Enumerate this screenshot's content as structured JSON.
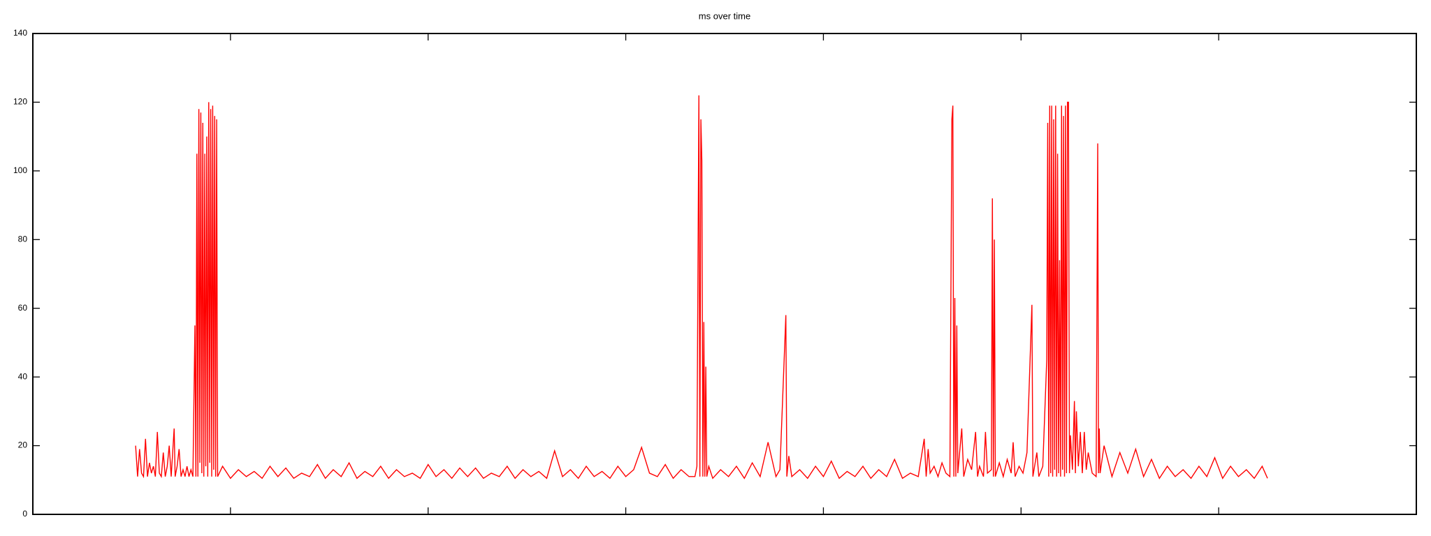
{
  "chart_data": {
    "type": "line",
    "title": "ms over time",
    "x": [
      52,
      53,
      54,
      55,
      56,
      57,
      58,
      59,
      60,
      61,
      62,
      63,
      64,
      65,
      66,
      67,
      68,
      69,
      70,
      71.5,
      72,
      73,
      74,
      75,
      76,
      77,
      78,
      79,
      80,
      81,
      82,
      82.5,
      83,
      83.5,
      84,
      84.5,
      85,
      85.5,
      86,
      86.5,
      87,
      87.5,
      88,
      88.5,
      89,
      89.5,
      90,
      90.5,
      91,
      91.5,
      92,
      92.5,
      93,
      93.5,
      96,
      100,
      104,
      108,
      112,
      116,
      120,
      124,
      128,
      132,
      136,
      140,
      144,
      148,
      152,
      156,
      160,
      164,
      168,
      172,
      176,
      180,
      184,
      188,
      192,
      196,
      200,
      204,
      208,
      212,
      216,
      220,
      224,
      228,
      232,
      236,
      240,
      244,
      248,
      252,
      256,
      260,
      264,
      268,
      272,
      276,
      280,
      284,
      288,
      292,
      296,
      300,
      304,
      308,
      312,
      316,
      320,
      324,
      328,
      332,
      335,
      336,
      337,
      337.5,
      338,
      338.5,
      339,
      339.5,
      340,
      340.5,
      341,
      342,
      344,
      348,
      352,
      356,
      360,
      364,
      368,
      372,
      376,
      378,
      381,
      381.5,
      382.5,
      384,
      388,
      392,
      396,
      400,
      404,
      408,
      412,
      416,
      420,
      424,
      428,
      432,
      436,
      440,
      444,
      448,
      451,
      452,
      453,
      454,
      456,
      458,
      460,
      462,
      464,
      465,
      465.5,
      466,
      466.5,
      467,
      467.5,
      468,
      470,
      471,
      473,
      475,
      477,
      478,
      479,
      481,
      482,
      483,
      485,
      485.5,
      486,
      486.5,
      487,
      489,
      491,
      493,
      495,
      496,
      497,
      499,
      501,
      503,
      505.5,
      506,
      508,
      509,
      511,
      513,
      513.5,
      514,
      514.5,
      515,
      515.5,
      516,
      516.5,
      517,
      517.5,
      518,
      518.5,
      519,
      519.5,
      520,
      520.5,
      521,
      521.5,
      522,
      522.5,
      523,
      523.5,
      524,
      524.5,
      525,
      526,
      527,
      527.5,
      528,
      529,
      530,
      531,
      532,
      533,
      534,
      536,
      538,
      538.8,
      539.2,
      539.6,
      540,
      542,
      546,
      550,
      554,
      558,
      562,
      566,
      570,
      574,
      578,
      582,
      586,
      590,
      594,
      598,
      602,
      606,
      610,
      614,
      618,
      622,
      624.7
    ],
    "values": [
      20,
      11,
      19,
      12,
      11,
      22,
      11,
      15,
      12,
      14,
      11,
      24,
      12,
      11,
      18,
      11,
      14,
      20,
      11,
      25,
      11,
      14,
      19,
      11,
      13,
      11,
      14,
      11,
      13,
      11,
      55,
      11,
      105,
      11,
      118,
      15,
      117,
      12,
      114,
      11,
      105,
      14,
      110,
      11,
      120,
      15,
      118,
      11,
      119,
      13,
      116,
      11,
      115,
      11,
      14,
      10.5,
      13,
      11,
      12.5,
      10.5,
      14,
      11,
      13.5,
      10.5,
      12,
      11,
      14.5,
      10.5,
      13,
      11,
      15,
      10.5,
      12.5,
      11,
      14,
      10.5,
      13,
      11,
      12,
      10.5,
      14.5,
      11,
      13,
      10.5,
      13.5,
      11,
      13.5,
      10.5,
      12,
      11,
      14,
      10.5,
      13,
      11,
      12.5,
      10.5,
      18.5,
      11,
      13,
      10.5,
      14,
      11,
      12.5,
      10.5,
      14,
      11,
      13,
      19.5,
      12,
      11,
      14.5,
      10.5,
      13,
      11,
      11,
      14,
      122,
      11,
      115,
      103,
      11,
      56,
      11,
      43,
      11,
      14,
      10.5,
      13,
      11,
      14,
      10.5,
      15,
      11,
      21,
      11,
      13,
      58,
      11,
      17,
      11,
      13,
      10.5,
      14,
      11,
      15.5,
      10.5,
      12.5,
      11,
      14,
      10.5,
      13,
      11,
      16,
      10.5,
      12,
      11,
      22,
      11,
      19,
      12,
      14,
      11,
      15,
      12,
      11,
      115,
      119,
      11,
      63,
      11,
      55,
      12,
      25,
      11,
      16,
      13,
      24,
      11,
      14,
      11,
      24,
      12,
      13,
      92,
      11,
      80,
      11,
      15,
      11,
      16,
      12,
      21,
      11,
      14,
      12,
      18,
      61,
      11,
      18,
      11,
      14,
      45,
      114,
      11,
      119,
      12,
      119,
      11,
      115,
      13,
      119,
      11,
      105,
      12,
      74,
      11,
      119,
      13,
      116,
      11,
      119,
      12,
      120,
      120,
      12,
      23,
      13,
      33,
      12,
      30,
      14,
      24,
      12,
      24,
      13,
      18,
      12,
      11,
      108,
      12,
      25,
      12,
      20,
      11,
      18,
      12,
      19,
      11,
      16,
      10.5,
      14,
      11,
      13,
      10.5,
      14,
      11,
      16.5,
      10.5,
      14,
      11,
      13,
      10.5,
      14,
      10.5
    ],
    "color": "#ff0000",
    "xlim": [
      0,
      700
    ],
    "xticks": [
      100,
      200,
      300,
      400,
      500,
      600
    ],
    "ylim": [
      0,
      140
    ],
    "yticks": [
      0,
      20,
      40,
      60,
      80,
      100,
      120,
      140
    ]
  }
}
